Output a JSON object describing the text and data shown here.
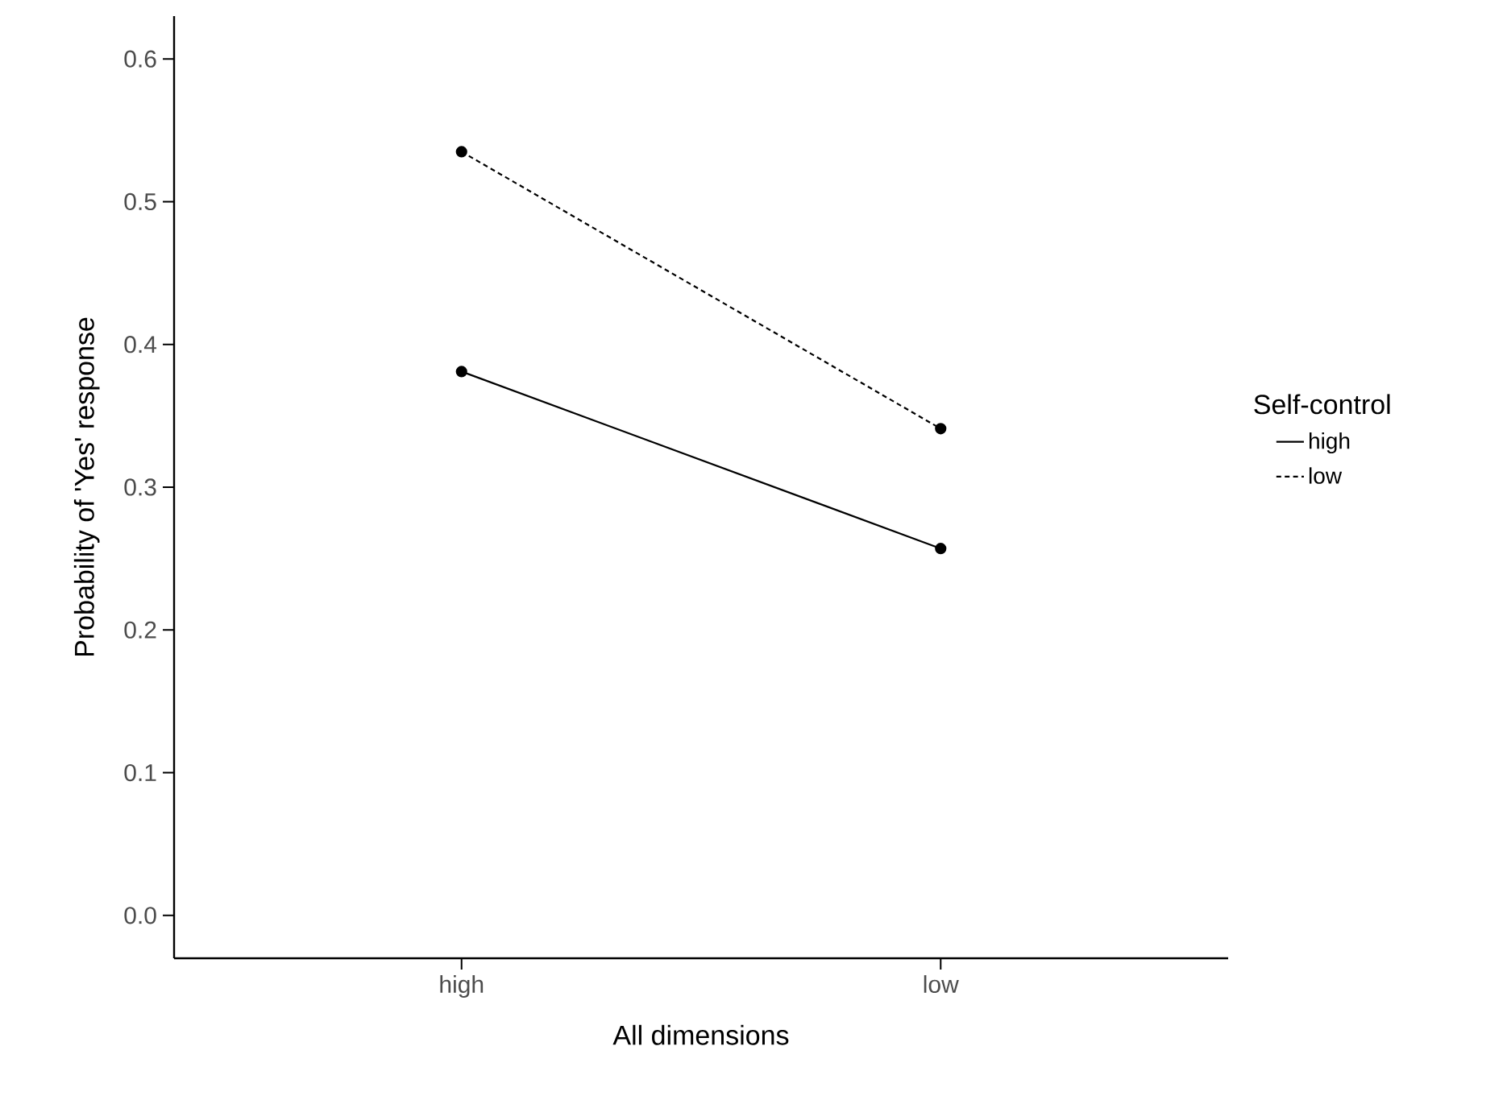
{
  "chart_data": {
    "type": "line",
    "xlabel": "All dimensions",
    "ylabel": "Probability of 'Yes' response",
    "legend_title": "Self-control",
    "categories": [
      "high",
      "low"
    ],
    "series": [
      {
        "name": "high",
        "color": "#000000",
        "line_style": "solid",
        "values": [
          0.381,
          0.257
        ]
      },
      {
        "name": "low",
        "color": "#000000",
        "line_style": "dashed",
        "values": [
          0.535,
          0.341
        ]
      }
    ],
    "ylim": [
      -0.03,
      0.63
    ],
    "yticks": [
      {
        "value": 0,
        "label": "0.0"
      },
      0.1,
      0.2,
      0.3,
      0.4,
      0.5,
      0.6
    ],
    "marker": "circle",
    "legend": "right",
    "grid": false
  }
}
